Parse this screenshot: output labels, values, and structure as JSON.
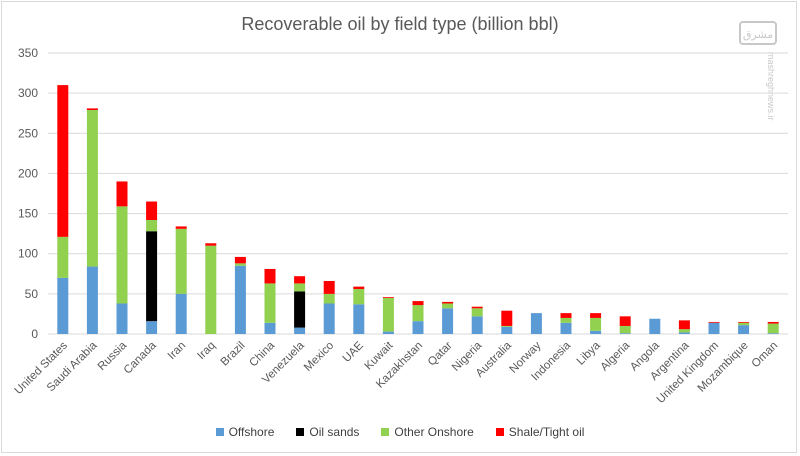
{
  "chart_data": {
    "type": "bar",
    "stacked": true,
    "title": "Recoverable oil by field type (billion bbl)",
    "xlabel": "",
    "ylabel": "",
    "ylim": [
      0,
      350
    ],
    "yticks": [
      0,
      50,
      100,
      150,
      200,
      250,
      300,
      350
    ],
    "grid": true,
    "legend_position": "bottom",
    "categories": [
      "United States",
      "Saudi Arabia",
      "Russia",
      "Canada",
      "Iran",
      "Iraq",
      "Brazil",
      "China",
      "Venezuela",
      "Mexico",
      "UAE",
      "Kuwait",
      "Kazakhstan",
      "Qatar",
      "Nigeria",
      "Australia",
      "Norway",
      "Indonesia",
      "Libya",
      "Algeria",
      "Angola",
      "Argentina",
      "United Kingdom",
      "Mozambique",
      "Oman"
    ],
    "series": [
      {
        "name": "Offshore",
        "color": "#5b9bd5",
        "values": [
          70,
          84,
          38,
          16,
          50,
          0,
          85,
          14,
          8,
          38,
          37,
          3,
          16,
          32,
          22,
          9,
          26,
          14,
          4,
          1,
          19,
          2,
          14,
          11,
          1
        ]
      },
      {
        "name": "Oil sands",
        "color": "#000000",
        "values": [
          0,
          0,
          0,
          112,
          0,
          0,
          0,
          0,
          45,
          0,
          0,
          0,
          0,
          0,
          0,
          0,
          0,
          0,
          0,
          0,
          0,
          0,
          0,
          0,
          0
        ]
      },
      {
        "name": "Other Onshore",
        "color": "#92d050",
        "values": [
          51,
          195,
          121,
          14,
          81,
          110,
          3,
          49,
          10,
          12,
          19,
          42,
          20,
          6,
          10,
          1,
          0,
          6,
          16,
          9,
          0,
          4,
          0,
          3,
          12
        ]
      },
      {
        "name": "Shale/Tight oil",
        "color": "#ff0000",
        "values": [
          189,
          2,
          31,
          23,
          3,
          3,
          8,
          18,
          9,
          16,
          3,
          1,
          5,
          2,
          2,
          19,
          0,
          6,
          6,
          12,
          0,
          11,
          1,
          1,
          2
        ]
      }
    ]
  },
  "watermark": {
    "text": "mashreghnews.ir"
  }
}
